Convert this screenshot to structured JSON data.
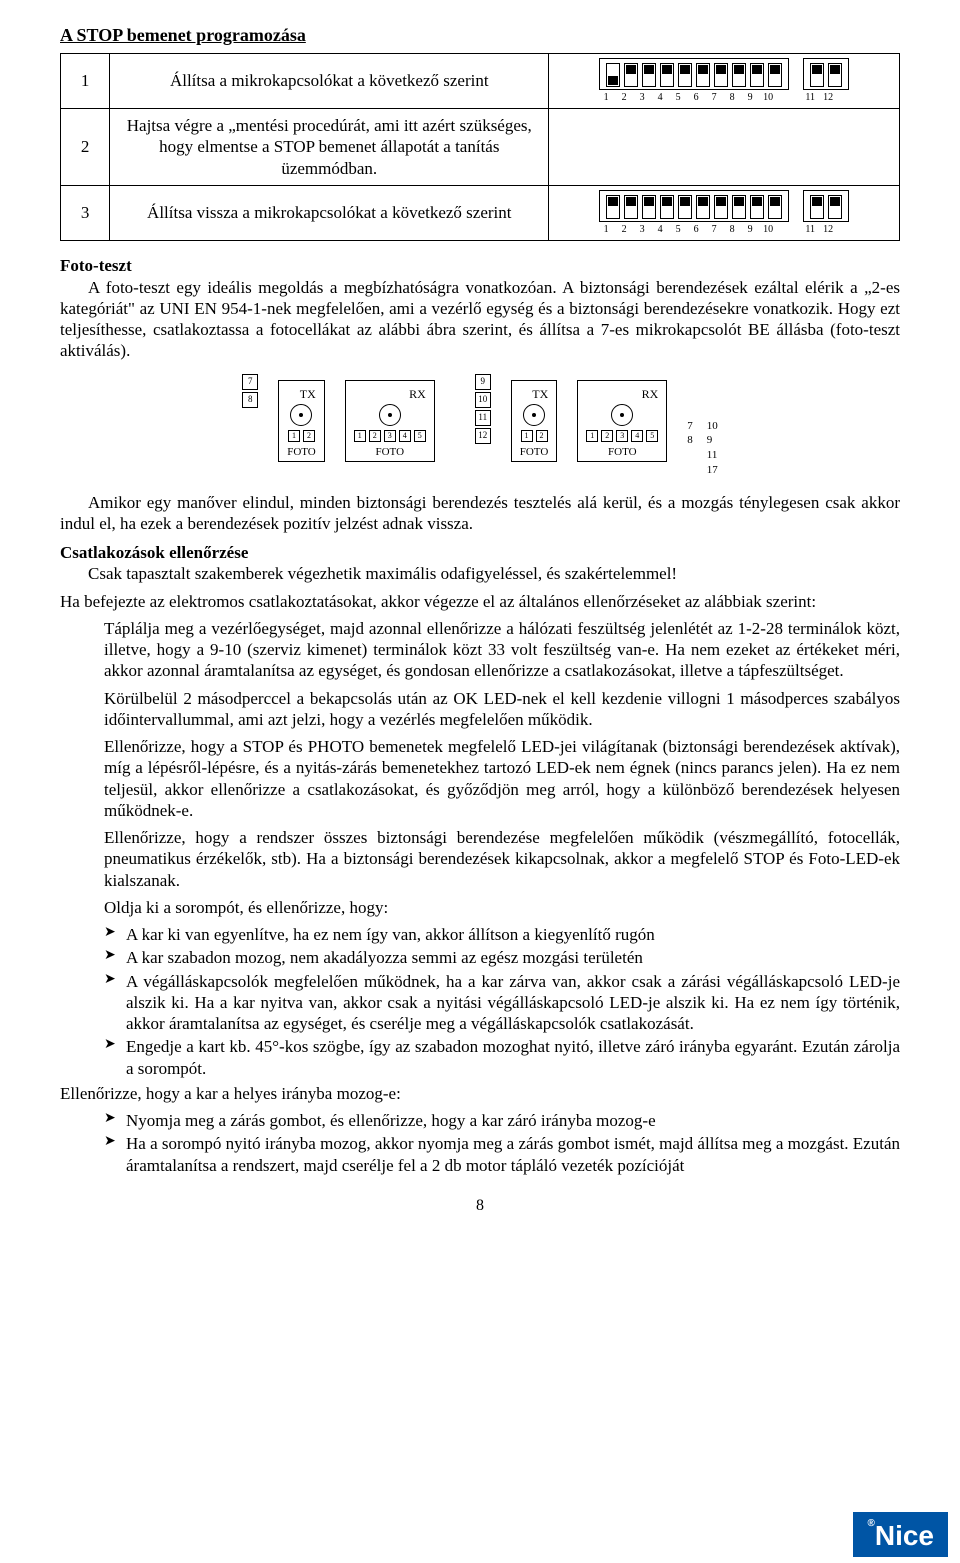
{
  "title": "A STOP bemenet programozása",
  "steps": [
    {
      "num": "1",
      "desc": "Állítsa a mikrokapcsolókat a következő szerint",
      "dip10": [
        "down",
        "up",
        "up",
        "up",
        "up",
        "up",
        "up",
        "up",
        "up",
        "up"
      ],
      "dip2": [
        "up",
        "up"
      ]
    },
    {
      "num": "2",
      "desc": "Hajtsa végre a „mentési procedúrát, ami itt azért szükséges, hogy elmentse a STOP bemenet állapotát a tanítás üzemmódban.",
      "dip10": null,
      "dip2": null
    },
    {
      "num": "3",
      "desc": "Állítsa vissza a mikrokapcsolókat a következő szerint",
      "dip10": [
        "up",
        "up",
        "up",
        "up",
        "up",
        "up",
        "up",
        "up",
        "up",
        "up"
      ],
      "dip2": [
        "up",
        "up"
      ]
    }
  ],
  "dip_labels10": [
    "1",
    "2",
    "3",
    "4",
    "5",
    "6",
    "7",
    "8",
    "9",
    "10"
  ],
  "dip_labels2": [
    "11",
    "12"
  ],
  "foto_heading": "Foto-teszt",
  "foto_p1": "A foto-teszt egy ideális megoldás a megbízhatóságra vonatkozóan. A biztonsági berendezések ezáltal elérik a „2-es kategóriát\" az UNI EN 954-1-nek megfelelően, ami a vezérlő egység és a biztonsági berendezésekre vonatkozik. Hogy ezt teljesíthesse, csatlakoztassa a fotocellákat az alábbi ábra szerint, és állítsa a 7-es mikrokapcsolót BE állásba (foto-teszt aktiválás).",
  "wiring_left_terms": [
    "7",
    "8"
  ],
  "wiring_right_terms": [
    "9",
    "10",
    "11",
    "12"
  ],
  "wiring_right_side1": [
    "7",
    "8"
  ],
  "wiring_right_side2": [
    "10",
    "9",
    "11",
    "17"
  ],
  "foto_tx": "TX",
  "foto_rx": "RX",
  "foto_caption": "FOTO",
  "tx_pins": [
    "1",
    "2"
  ],
  "rx_pins": [
    "1",
    "2",
    "3",
    "4",
    "5"
  ],
  "para_after_wiring": "Amikor egy manőver elindul, minden biztonsági berendezés tesztelés alá kerül, és a mozgás ténylegesen csak akkor indul el, ha ezek a berendezések pozitív jelzést adnak vissza.",
  "conn_heading": "Csatlakozások ellenőrzése",
  "conn_p1": "Csak tapasztalt szakemberek végezhetik maximális odafigyeléssel, és szakértelemmel!",
  "conn_p2": "Ha befejezte az elektromos csatlakoztatásokat, akkor végezze el az általános ellenőrzéseket az alábbiak szerint:",
  "checks": [
    "Táplálja meg a vezérlőegységet, majd azonnal ellenőrizze a hálózati feszültség jelenlétét az 1-2-28 terminálok közt, illetve, hogy a 9-10 (szerviz kimenet) terminálok közt 33 volt feszültség van-e. Ha nem ezeket az értékeket méri, akkor azonnal áramtalanítsa az egységet, és gondosan ellenőrizze a csatlakozásokat, illetve a tápfeszültséget.",
    "Körülbelül 2 másodperccel a bekapcsolás után az OK LED-nek el kell kezdenie villogni 1 másodperces szabályos időintervallummal, ami azt jelzi, hogy a vezérlés megfelelően működik.",
    "Ellenőrizze, hogy a STOP és PHOTO bemenetek megfelelő LED-jei világítanak (biztonsági berendezések aktívak), míg a lépésről-lépésre, és a nyitás-zárás bemenetekhez tartozó LED-ek nem égnek (nincs parancs jelen). Ha ez nem teljesül, akkor ellenőrizze a csatlakozásokat, és győződjön meg arról, hogy a különböző berendezések helyesen működnek-e.",
    "Ellenőrizze, hogy a rendszer összes biztonsági berendezése megfelelően működik (vészmegállító, fotocellák, pneumatikus érzékelők, stb). Ha a biztonsági berendezések kikapcsolnak, akkor a megfelelő STOP és Foto-LED-ek kialszanak.",
    "Oldja ki a sorompót, és ellenőrizze, hogy:"
  ],
  "bullets1": [
    "A kar ki van egyenlítve, ha ez nem így van, akkor állítson a kiegyenlítő rugón",
    "A kar szabadon mozog, nem akadályozza semmi az egész mozgási területén",
    "A végálláskapcsolók megfelelően működnek, ha a kar zárva van, akkor csak a zárási végálláskapcsoló LED-je alszik ki. Ha a kar nyitva van, akkor csak a nyitási végálláskapcsoló LED-je alszik ki. Ha ez nem így történik, akkor áramtalanítsa az egységet, és cserélje meg a végálláskapcsolók csatlakozását.",
    "Engedje a kart kb. 45°-kos szögbe, így az szabadon mozoghat nyitó, illetve záró irányba egyaránt. Ezután zárolja a sorompót."
  ],
  "after_bullets": "Ellenőrizze, hogy a kar a helyes irányba mozog-e:",
  "bullets2": [
    "Nyomja meg a zárás gombot, és ellenőrizze, hogy a kar záró irányba mozog-e",
    "Ha a sorompó nyitó irányba mozog, akkor nyomja meg a zárás gombot ismét, majd állítsa meg a mozgást. Ezután áramtalanítsa a rendszert, majd cserélje fel a 2 db motor tápláló vezeték pozícióját"
  ],
  "page_number": "8",
  "logo_text": "Nice",
  "logo_reg": "®"
}
